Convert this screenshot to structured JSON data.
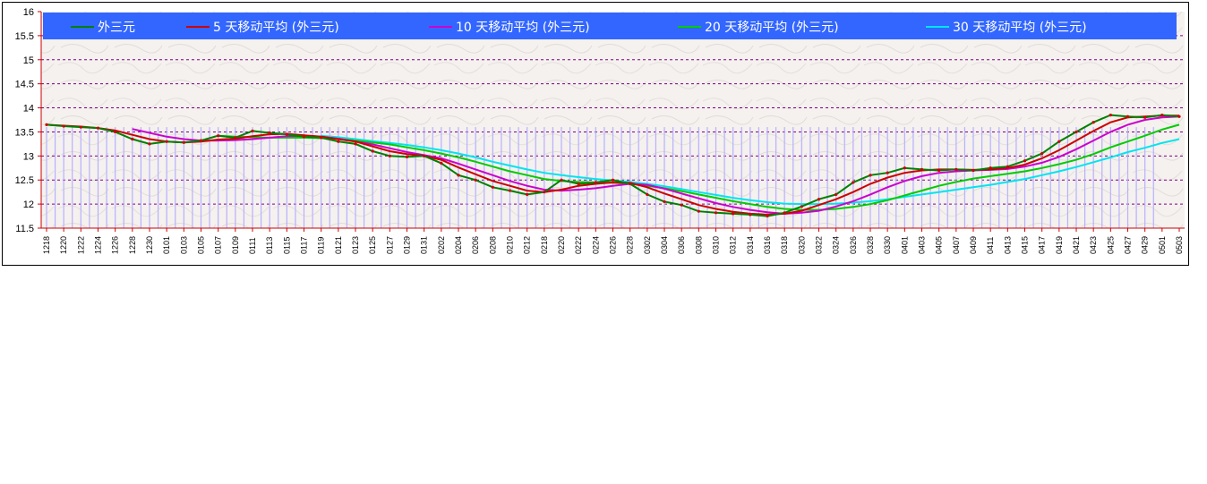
{
  "chart_data": {
    "type": "line",
    "y_ticks": [
      "16",
      "15.5",
      "15",
      "14.5",
      "14",
      "13.5",
      "13",
      "12.5",
      "12",
      "11.5"
    ],
    "ylim": [
      11.5,
      16
    ],
    "grid": "horizontal dashed",
    "legend": "top",
    "x_labels": [
      "1218",
      "1220",
      "1222",
      "1224",
      "1226",
      "1228",
      "1230",
      "0101",
      "0103",
      "0105",
      "0107",
      "0109",
      "0111",
      "0113",
      "0115",
      "0117",
      "0119",
      "0121",
      "0123",
      "0125",
      "0127",
      "0129",
      "0131",
      "0202",
      "0204",
      "0206",
      "0208",
      "0210",
      "0212",
      "0218",
      "0220",
      "0222",
      "0224",
      "0226",
      "0228",
      "0302",
      "0304",
      "0306",
      "0308",
      "0310",
      "0312",
      "0314",
      "0316",
      "0318",
      "0320",
      "0322",
      "0324",
      "0326",
      "0328",
      "0330",
      "0401",
      "0403",
      "0405",
      "0407",
      "0409",
      "0411",
      "0413",
      "0415",
      "0417",
      "0419",
      "0421",
      "0423",
      "0425",
      "0427",
      "0429",
      "0501",
      "0503"
    ],
    "series": [
      {
        "name": "外三元",
        "color": "#008000",
        "values": [
          13.65,
          13.62,
          13.6,
          13.58,
          13.5,
          13.35,
          13.25,
          13.3,
          13.28,
          13.32,
          13.42,
          13.38,
          13.52,
          13.48,
          13.45,
          13.4,
          13.38,
          13.3,
          13.25,
          13.1,
          13.0,
          12.98,
          13.0,
          12.85,
          12.6,
          12.5,
          12.35,
          12.28,
          12.2,
          12.25,
          12.5,
          12.42,
          12.45,
          12.5,
          12.42,
          12.2,
          12.05,
          11.98,
          11.85,
          11.82,
          11.8,
          11.78,
          11.75,
          11.82,
          11.95,
          12.1,
          12.2,
          12.45,
          12.6,
          12.65,
          12.75,
          12.72,
          12.7,
          12.72,
          12.7,
          12.75,
          12.78,
          12.9,
          13.05,
          13.3,
          13.5,
          13.7,
          13.85,
          13.82,
          13.8,
          13.85,
          13.82
        ]
      },
      {
        "name": "5 天移动平均 (外三元)",
        "color": "#cc0000",
        "values": [
          13.65,
          13.63,
          13.61,
          13.58,
          13.53,
          13.44,
          13.35,
          13.3,
          13.28,
          13.3,
          13.34,
          13.36,
          13.41,
          13.45,
          13.46,
          13.43,
          13.4,
          13.35,
          13.3,
          13.2,
          13.1,
          13.04,
          13.0,
          12.92,
          12.76,
          12.62,
          12.48,
          12.38,
          12.28,
          12.25,
          12.3,
          12.38,
          12.42,
          12.45,
          12.44,
          12.35,
          12.22,
          12.1,
          11.98,
          11.9,
          11.84,
          11.8,
          11.78,
          11.8,
          11.86,
          11.98,
          12.1,
          12.25,
          12.42,
          12.55,
          12.65,
          12.7,
          12.72,
          12.72,
          12.71,
          12.72,
          12.75,
          12.82,
          12.95,
          13.12,
          13.32,
          13.52,
          13.7,
          13.8,
          13.82,
          13.84,
          13.84
        ]
      },
      {
        "name": "10 天移动平均 (外三元)",
        "color": "#cc00cc",
        "values": [
          null,
          null,
          null,
          null,
          null,
          13.56,
          13.48,
          13.4,
          13.35,
          13.32,
          13.32,
          13.33,
          13.35,
          13.38,
          13.41,
          13.42,
          13.4,
          13.36,
          13.3,
          13.24,
          13.16,
          13.08,
          13.02,
          12.95,
          12.84,
          12.72,
          12.6,
          12.48,
          12.38,
          12.3,
          12.28,
          12.3,
          12.33,
          12.38,
          12.42,
          12.4,
          12.32,
          12.22,
          12.12,
          12.02,
          11.94,
          11.88,
          11.83,
          11.8,
          11.82,
          11.86,
          11.95,
          12.06,
          12.2,
          12.35,
          12.48,
          12.58,
          12.65,
          12.68,
          12.7,
          12.71,
          12.73,
          12.78,
          12.86,
          12.98,
          13.14,
          13.32,
          13.5,
          13.65,
          13.75,
          13.8,
          13.82
        ]
      },
      {
        "name": "20 天移动平均 (外三元)",
        "color": "#00cc00",
        "values": [
          null,
          null,
          null,
          null,
          null,
          null,
          null,
          null,
          null,
          null,
          13.42,
          13.4,
          13.39,
          13.38,
          13.38,
          13.38,
          13.37,
          13.35,
          13.32,
          13.28,
          13.24,
          13.18,
          13.12,
          13.05,
          12.97,
          12.88,
          12.78,
          12.68,
          12.6,
          12.52,
          12.48,
          12.46,
          12.45,
          12.44,
          12.42,
          12.38,
          12.33,
          12.27,
          12.2,
          12.13,
          12.06,
          12.0,
          11.94,
          11.9,
          11.88,
          11.88,
          11.9,
          11.94,
          12.0,
          12.08,
          12.18,
          12.28,
          12.38,
          12.46,
          12.53,
          12.58,
          12.63,
          12.68,
          12.75,
          12.83,
          12.92,
          13.04,
          13.18,
          13.3,
          13.42,
          13.55,
          13.65
        ]
      },
      {
        "name": "30 天移动平均 (外三元)",
        "color": "#00e5ee",
        "values": [
          null,
          null,
          null,
          null,
          null,
          null,
          null,
          null,
          null,
          null,
          null,
          null,
          null,
          null,
          null,
          null,
          13.42,
          13.39,
          13.35,
          13.31,
          13.27,
          13.23,
          13.18,
          13.12,
          13.05,
          12.97,
          12.88,
          12.8,
          12.72,
          12.65,
          12.6,
          12.56,
          12.52,
          12.49,
          12.46,
          12.42,
          12.37,
          12.31,
          12.25,
          12.19,
          12.13,
          12.08,
          12.04,
          12.01,
          12.0,
          12.0,
          12.01,
          12.03,
          12.06,
          12.1,
          12.15,
          12.2,
          12.25,
          12.3,
          12.35,
          12.4,
          12.46,
          12.52,
          12.6,
          12.68,
          12.77,
          12.87,
          12.97,
          13.08,
          13.17,
          13.27,
          13.35
        ]
      }
    ]
  }
}
